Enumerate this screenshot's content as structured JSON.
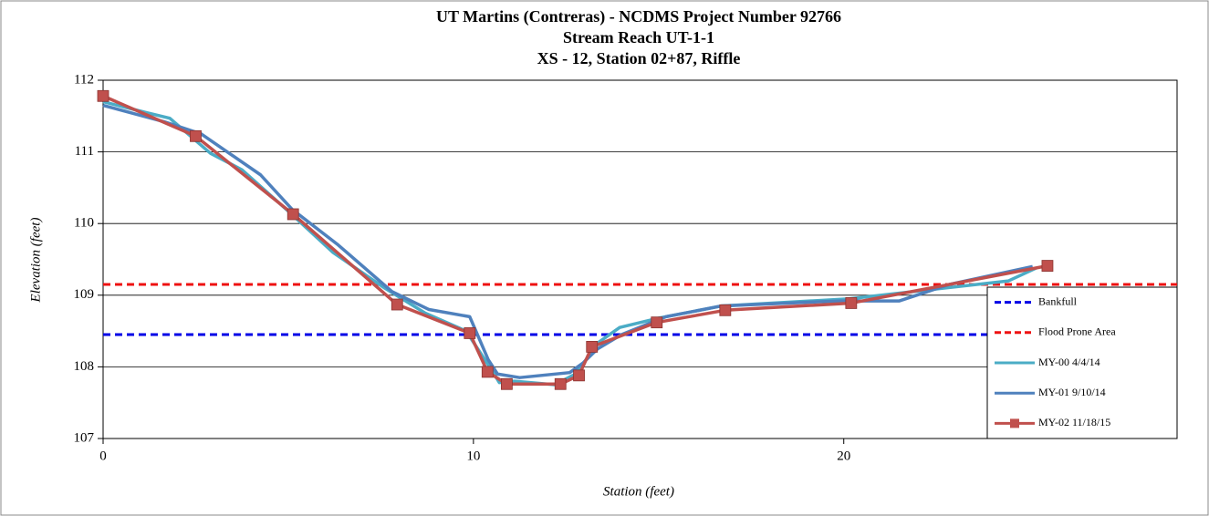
{
  "chart_data": {
    "type": "line",
    "title": [
      "UT Martins (Contreras) - NCDMS Project Number 92766",
      "Stream Reach UT-1-1",
      "XS - 12, Station 02+87, Riffle"
    ],
    "x_label": "Station (feet)",
    "y_label": "Elevation (feet)",
    "xlim": [
      0,
      29
    ],
    "xticks": [
      0,
      10,
      20
    ],
    "ylim": [
      107,
      112
    ],
    "yticks": [
      107,
      108,
      109,
      110,
      111,
      112
    ],
    "grid": true,
    "legend": "right",
    "series": [
      {
        "name": "Bankfull",
        "color": "#0000e6",
        "dash": true,
        "x": [
          0,
          29
        ],
        "values": [
          108.45,
          108.45
        ]
      },
      {
        "name": "Flood Prone Area",
        "color": "#ee1111",
        "dash": true,
        "x": [
          0,
          29
        ],
        "values": [
          109.15,
          109.15
        ]
      },
      {
        "name": "MY-00 4/4/14",
        "color": "#4bacc6",
        "x": [
          0,
          1.15,
          1.8,
          2.9,
          3.75,
          5.05,
          6.2,
          7.6,
          8.7,
          9.8,
          10.5,
          10.7,
          11.1,
          12.2,
          12.75,
          13.4,
          13.95,
          15,
          16.7,
          20.15,
          24.45,
          25.2
        ],
        "values": [
          111.7,
          111.55,
          111.47,
          110.98,
          110.75,
          110.15,
          109.6,
          109.1,
          108.75,
          108.5,
          107.95,
          107.78,
          107.8,
          107.75,
          107.9,
          108.35,
          108.55,
          108.68,
          108.85,
          108.95,
          109.2,
          109.38
        ]
      },
      {
        "name": "MY-01 9/10/14",
        "color": "#4f81bd",
        "x": [
          0,
          1.65,
          2.65,
          4.25,
          5.1,
          6.35,
          7.8,
          8.8,
          9.9,
          10.4,
          10.65,
          11.25,
          12.6,
          12.95,
          13.35,
          14,
          15.2,
          16.7,
          19.9,
          21.5,
          22.85,
          25.1
        ],
        "values": [
          111.65,
          111.42,
          111.25,
          110.68,
          110.2,
          109.7,
          109.05,
          108.8,
          108.7,
          108.1,
          107.9,
          107.85,
          107.92,
          108.05,
          108.25,
          108.45,
          108.7,
          108.85,
          108.92,
          108.92,
          109.15,
          109.4
        ]
      },
      {
        "name": "MY-02 11/18/15",
        "color": "#c0504d",
        "marker": "square",
        "x": [
          0,
          2.5,
          5.13,
          7.94,
          9.9,
          10.38,
          10.9,
          12.35,
          12.85,
          13.2,
          14.95,
          16.8,
          20.2,
          25.5
        ],
        "values": [
          111.78,
          111.22,
          110.13,
          108.87,
          108.47,
          107.93,
          107.76,
          107.76,
          107.88,
          108.28,
          108.62,
          108.79,
          108.89,
          109.41
        ]
      }
    ]
  }
}
